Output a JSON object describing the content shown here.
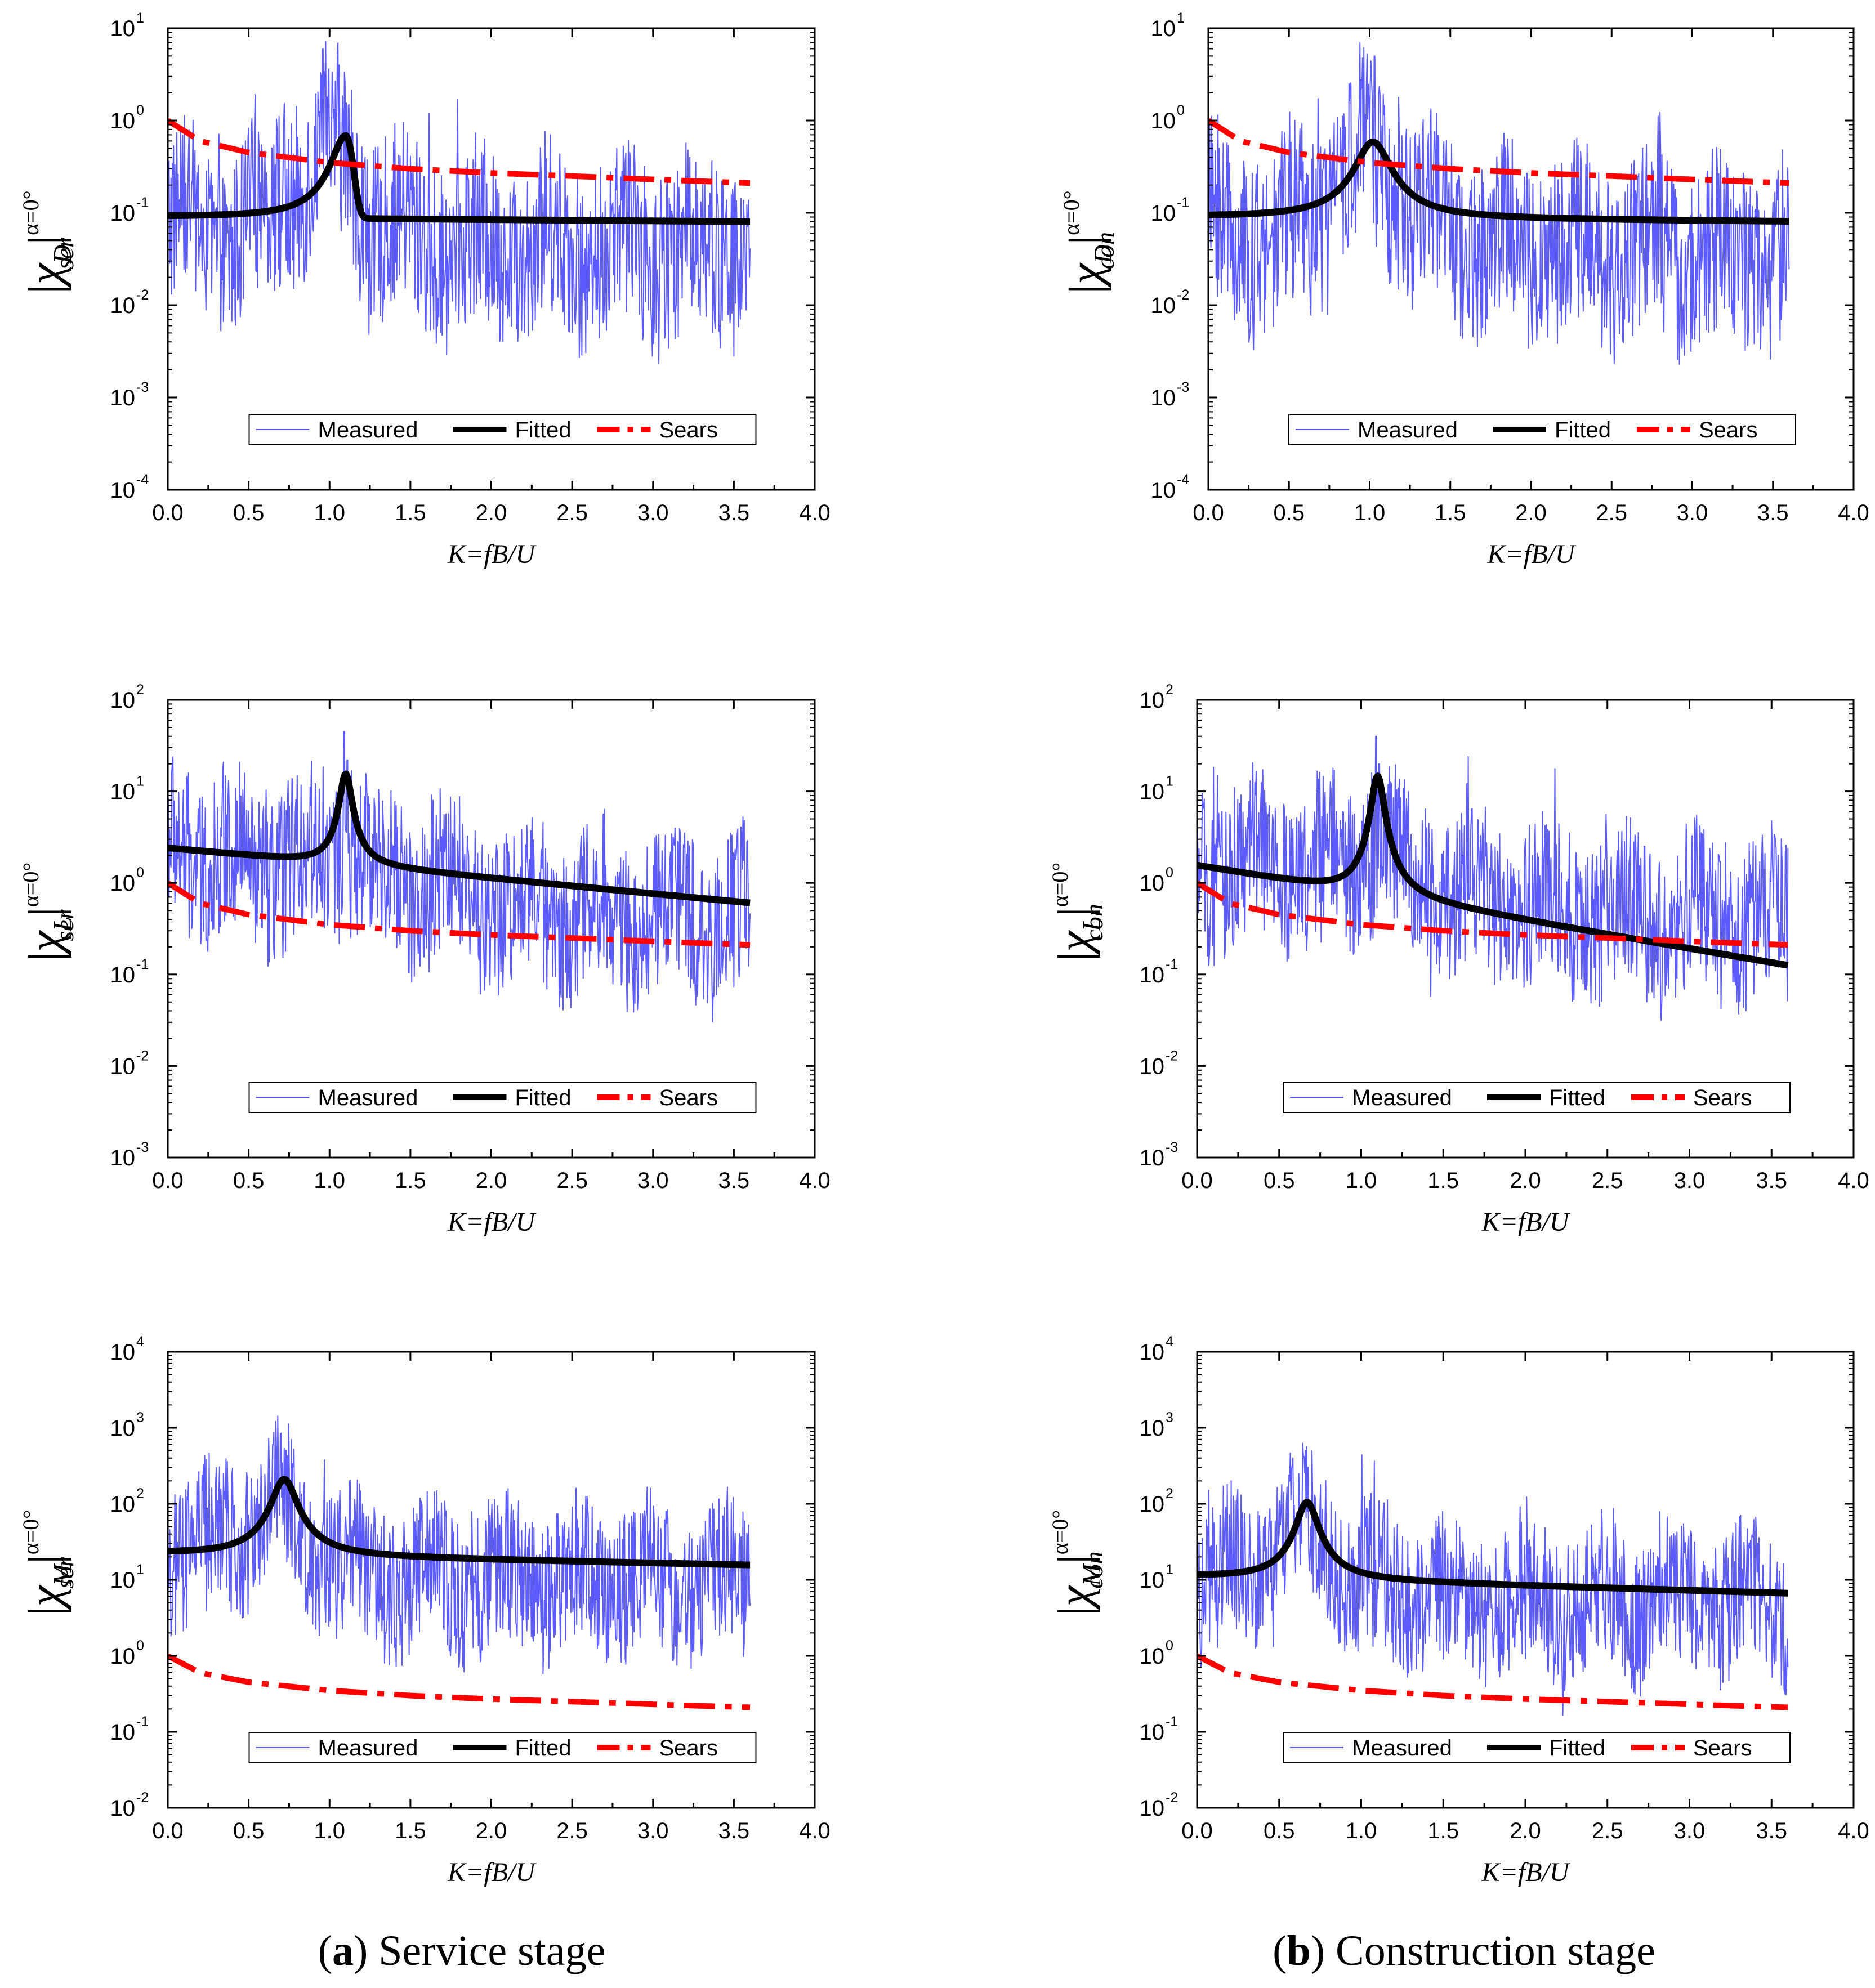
{
  "colors": {
    "measured": "#5b5bff",
    "fitted": "#000000",
    "sears": "#ff0000"
  },
  "captions": {
    "left": {
      "prefix": "(",
      "letter": "a",
      "suffix": ") Service stage"
    },
    "right": {
      "prefix": "(",
      "letter": "b",
      "suffix": ") Construction stage"
    }
  },
  "chart_data": [
    {
      "id": "drag-service",
      "type": "line",
      "title": "",
      "xlabel": "K=fB/U",
      "ylabel": "|χ_D|^{α=0°}_ser",
      "ylabel_parts": {
        "chi": "χ",
        "sub1": "D",
        "bar": "|",
        "sup": "α=0°",
        "sub2": "ser"
      },
      "xlim": [
        0,
        4
      ],
      "ylim_exp": [
        -4,
        1
      ],
      "yscale": "log",
      "xticks": [
        "0.0",
        "0.5",
        "1.0",
        "1.5",
        "2.0",
        "2.5",
        "3.0",
        "3.5",
        "4.0"
      ],
      "yticks_base": "10",
      "yticks_exp": [
        "-4",
        "-3",
        "-2",
        "-1",
        "0",
        "1"
      ],
      "legend": [
        "Measured",
        "Fitted",
        "Sears"
      ],
      "legend_position": "bottom-center",
      "measured": {
        "base": [
          [
            0,
            0.085
          ],
          [
            0.4,
            0.05
          ],
          [
            0.8,
            0.2
          ],
          [
            1.0,
            0.5
          ],
          [
            1.1,
            0.4
          ],
          [
            1.25,
            0.08
          ],
          [
            1.6,
            0.05
          ],
          [
            2.0,
            0.04
          ],
          [
            2.3,
            0.05
          ],
          [
            2.6,
            0.04
          ],
          [
            3.0,
            0.04
          ],
          [
            3.6,
            0.04
          ]
        ],
        "spread": 1.0,
        "n": 900,
        "x_end": 3.6,
        "spikes": [
          [
            1.06,
            4.0
          ],
          [
            1.02,
            2.2
          ],
          [
            1.12,
            1.5
          ]
        ]
      },
      "fitted": {
        "base": 0.09,
        "slope": -0.05,
        "x_end": 3.6,
        "peaks": [
          {
            "k0": 1.1,
            "amp": 0.6,
            "width": 0.08,
            "cutoff": 0.17
          }
        ]
      },
      "sears": {
        "x": [
          0,
          0.2,
          0.5,
          1.0,
          1.5,
          2.0,
          2.5,
          3.0,
          3.6
        ],
        "y": [
          1.0,
          0.6,
          0.45,
          0.35,
          0.3,
          0.27,
          0.25,
          0.23,
          0.21
        ]
      }
    },
    {
      "id": "drag-construction",
      "type": "line",
      "title": "",
      "xlabel": "K=fB/U",
      "ylabel": "|χ_D|^{α=0°}_con",
      "ylabel_parts": {
        "chi": "χ",
        "sub1": "D",
        "bar": "|",
        "sup": "α=0°",
        "sub2": "con"
      },
      "xlim": [
        0,
        4
      ],
      "ylim_exp": [
        -4,
        1
      ],
      "yscale": "log",
      "xticks": [
        "0.0",
        "0.5",
        "1.0",
        "1.5",
        "2.0",
        "2.5",
        "3.0",
        "3.5",
        "4.0"
      ],
      "yticks_base": "10",
      "yticks_exp": [
        "-4",
        "-3",
        "-2",
        "-1",
        "0",
        "1"
      ],
      "legend": [
        "Measured",
        "Fitted",
        "Sears"
      ],
      "legend_position": "bottom-center",
      "measured": {
        "base": [
          [
            0,
            0.07
          ],
          [
            0.4,
            0.05
          ],
          [
            0.8,
            0.15
          ],
          [
            1.0,
            0.45
          ],
          [
            1.2,
            0.15
          ],
          [
            1.6,
            0.05
          ],
          [
            2.0,
            0.04
          ],
          [
            2.5,
            0.04
          ],
          [
            3.0,
            0.035
          ],
          [
            3.6,
            0.035
          ]
        ],
        "spread": 1.0,
        "n": 900,
        "x_end": 3.6,
        "spikes": [
          [
            1.03,
            5.0
          ],
          [
            0.98,
            2.5
          ]
        ]
      },
      "fitted": {
        "base": 0.09,
        "slope": -0.05,
        "x_end": 3.6,
        "peaks": [
          {
            "k0": 1.02,
            "amp": 0.5,
            "width": 0.1
          }
        ]
      },
      "sears": {
        "x": [
          0,
          0.2,
          0.5,
          1.0,
          1.5,
          2.0,
          2.5,
          3.0,
          3.6
        ],
        "y": [
          1.0,
          0.6,
          0.45,
          0.35,
          0.3,
          0.27,
          0.25,
          0.23,
          0.21
        ]
      }
    },
    {
      "id": "lift-service",
      "type": "line",
      "title": "",
      "xlabel": "K=fB/U",
      "ylabel": "|χ_L|^{α=0°}_ser",
      "ylabel_parts": {
        "chi": "χ",
        "sub1": "L",
        "bar": "|",
        "sup": "α=0°",
        "sub2": "ser"
      },
      "xlim": [
        0,
        4
      ],
      "ylim_exp": [
        -3,
        2
      ],
      "yscale": "log",
      "xticks": [
        "0.0",
        "0.5",
        "1.0",
        "1.5",
        "2.0",
        "2.5",
        "3.0",
        "3.5",
        "4.0"
      ],
      "yticks_base": "10",
      "yticks_exp": [
        "-3",
        "-2",
        "-1",
        "0",
        "1",
        "2"
      ],
      "legend": [
        "Measured",
        "Fitted",
        "Sears"
      ],
      "legend_position": "bottom-center",
      "measured": {
        "base": [
          [
            0,
            2.5
          ],
          [
            0.5,
            1.5
          ],
          [
            0.9,
            1.8
          ],
          [
            1.1,
            3.0
          ],
          [
            1.3,
            1.2
          ],
          [
            2.0,
            0.6
          ],
          [
            2.5,
            0.5
          ],
          [
            3.0,
            0.45
          ],
          [
            3.6,
            0.4
          ]
        ],
        "spread": 0.9,
        "n": 900,
        "x_end": 3.6,
        "spikes": [
          [
            1.09,
            45
          ],
          [
            1.11,
            22
          ]
        ]
      },
      "fitted": {
        "base": 2.4,
        "slope": -0.6,
        "x_end": 3.6,
        "peaks": [
          {
            "k0": 1.1,
            "amp": 14,
            "width": 0.035
          }
        ]
      },
      "sears": {
        "x": [
          0,
          0.2,
          0.5,
          1.0,
          1.5,
          2.0,
          2.5,
          3.0,
          3.6
        ],
        "y": [
          1.0,
          0.6,
          0.45,
          0.35,
          0.3,
          0.27,
          0.25,
          0.23,
          0.21
        ]
      }
    },
    {
      "id": "lift-construction",
      "type": "line",
      "title": "",
      "xlabel": "K=fB/U",
      "ylabel": "|χ_L|^{α=0°}_con",
      "ylabel_parts": {
        "chi": "χ",
        "sub1": "L",
        "bar": "|",
        "sup": "α=0°",
        "sub2": "con"
      },
      "xlim": [
        0,
        4
      ],
      "ylim_exp": [
        -3,
        2
      ],
      "yscale": "log",
      "xticks": [
        "0.0",
        "0.5",
        "1.0",
        "1.5",
        "2.0",
        "2.5",
        "3.0",
        "3.5",
        "4.0"
      ],
      "yticks_base": "10",
      "yticks_exp": [
        "-3",
        "-2",
        "-1",
        "0",
        "1",
        "2"
      ],
      "legend": [
        "Measured",
        "Fitted",
        "Sears"
      ],
      "legend_position": "bottom-center",
      "measured": {
        "base": [
          [
            0,
            1.5
          ],
          [
            0.5,
            1.5
          ],
          [
            0.9,
            1.5
          ],
          [
            1.1,
            3.0
          ],
          [
            1.3,
            1.0
          ],
          [
            2.0,
            0.55
          ],
          [
            2.5,
            0.45
          ],
          [
            3.0,
            0.4
          ],
          [
            3.6,
            0.35
          ]
        ],
        "spread": 0.9,
        "n": 900,
        "x_end": 3.6,
        "spikes": [
          [
            1.09,
            40
          ],
          [
            1.11,
            20
          ]
        ]
      },
      "fitted": {
        "base": 1.55,
        "slope": -1.1,
        "x_end": 3.6,
        "peaks": [
          {
            "k0": 1.1,
            "amp": 14,
            "width": 0.035
          }
        ]
      },
      "sears": {
        "x": [
          0,
          0.2,
          0.5,
          1.0,
          1.5,
          2.0,
          2.5,
          3.0,
          3.6
        ],
        "y": [
          1.0,
          0.6,
          0.45,
          0.35,
          0.3,
          0.27,
          0.25,
          0.23,
          0.21
        ]
      }
    },
    {
      "id": "moment-service",
      "type": "line",
      "title": "",
      "xlabel": "K=fB/U",
      "ylabel": "|χ_M|^{α=0°}_ser",
      "ylabel_parts": {
        "chi": "χ",
        "sub1": "M",
        "bar": "|",
        "sup": "α=0°",
        "sub2": "ser"
      },
      "xlim": [
        0,
        4
      ],
      "ylim_exp": [
        -2,
        4
      ],
      "yscale": "log",
      "xticks": [
        "0.0",
        "0.5",
        "1.0",
        "1.5",
        "2.0",
        "2.5",
        "3.0",
        "3.5",
        "4.0"
      ],
      "yticks_base": "10",
      "yticks_exp": [
        "-2",
        "-1",
        "0",
        "1",
        "2",
        "3",
        "4"
      ],
      "legend": [
        "Measured",
        "Fitted",
        "Sears"
      ],
      "legend_position": "bottom-center",
      "measured": {
        "base": [
          [
            0,
            25
          ],
          [
            0.4,
            35
          ],
          [
            0.7,
            120
          ],
          [
            0.9,
            30
          ],
          [
            1.2,
            12
          ],
          [
            1.6,
            10
          ],
          [
            2.0,
            10
          ],
          [
            2.5,
            10
          ],
          [
            3.0,
            10
          ],
          [
            3.6,
            10
          ]
        ],
        "spread": 1.0,
        "n": 900,
        "x_end": 3.6,
        "spikes": [
          [
            0.7,
            850
          ],
          [
            0.65,
            600
          ],
          [
            0.73,
            500
          ]
        ]
      },
      "fitted": {
        "base": 22,
        "slope": -0.15,
        "x_end": 3.6,
        "peaks": [
          {
            "k0": 0.72,
            "amp": 190,
            "width": 0.07
          }
        ]
      },
      "sears": {
        "x": [
          0,
          0.2,
          0.5,
          1.0,
          1.5,
          2.0,
          2.5,
          3.0,
          3.6
        ],
        "y": [
          1.0,
          0.6,
          0.45,
          0.35,
          0.3,
          0.27,
          0.25,
          0.23,
          0.21
        ]
      }
    },
    {
      "id": "moment-construction",
      "type": "line",
      "title": "",
      "xlabel": "K=fB/U",
      "ylabel": "|χ_M|^{α=0°}_con",
      "ylabel_parts": {
        "chi": "χ",
        "sub1": "M",
        "bar": "|",
        "sup": "α=0°",
        "sub2": "con"
      },
      "xlim": [
        0,
        4
      ],
      "ylim_exp": [
        -2,
        4
      ],
      "yscale": "log",
      "xticks": [
        "0.0",
        "0.5",
        "1.0",
        "1.5",
        "2.0",
        "2.5",
        "3.0",
        "3.5",
        "4.0"
      ],
      "yticks_base": "10",
      "yticks_exp": [
        "-2",
        "-1",
        "0",
        "1",
        "2",
        "3",
        "4"
      ],
      "legend": [
        "Measured",
        "Fitted",
        "Sears"
      ],
      "legend_position": "bottom-center",
      "measured": {
        "base": [
          [
            0,
            10
          ],
          [
            0.4,
            15
          ],
          [
            0.65,
            60
          ],
          [
            0.85,
            15
          ],
          [
            1.2,
            7
          ],
          [
            1.6,
            5
          ],
          [
            2.0,
            5
          ],
          [
            2.5,
            5
          ],
          [
            3.0,
            5
          ],
          [
            3.6,
            4.5
          ]
        ],
        "spread": 1.0,
        "n": 900,
        "x_end": 3.6,
        "spikes": [
          [
            0.65,
            420
          ],
          [
            0.62,
            250
          ]
        ]
      },
      "fitted": {
        "base": 11,
        "slope": -0.22,
        "x_end": 3.6,
        "peaks": [
          {
            "k0": 0.67,
            "amp": 95,
            "width": 0.06
          }
        ]
      },
      "sears": {
        "x": [
          0,
          0.2,
          0.5,
          1.0,
          1.5,
          2.0,
          2.5,
          3.0,
          3.6
        ],
        "y": [
          1.0,
          0.6,
          0.45,
          0.35,
          0.3,
          0.27,
          0.25,
          0.23,
          0.21
        ]
      }
    }
  ]
}
